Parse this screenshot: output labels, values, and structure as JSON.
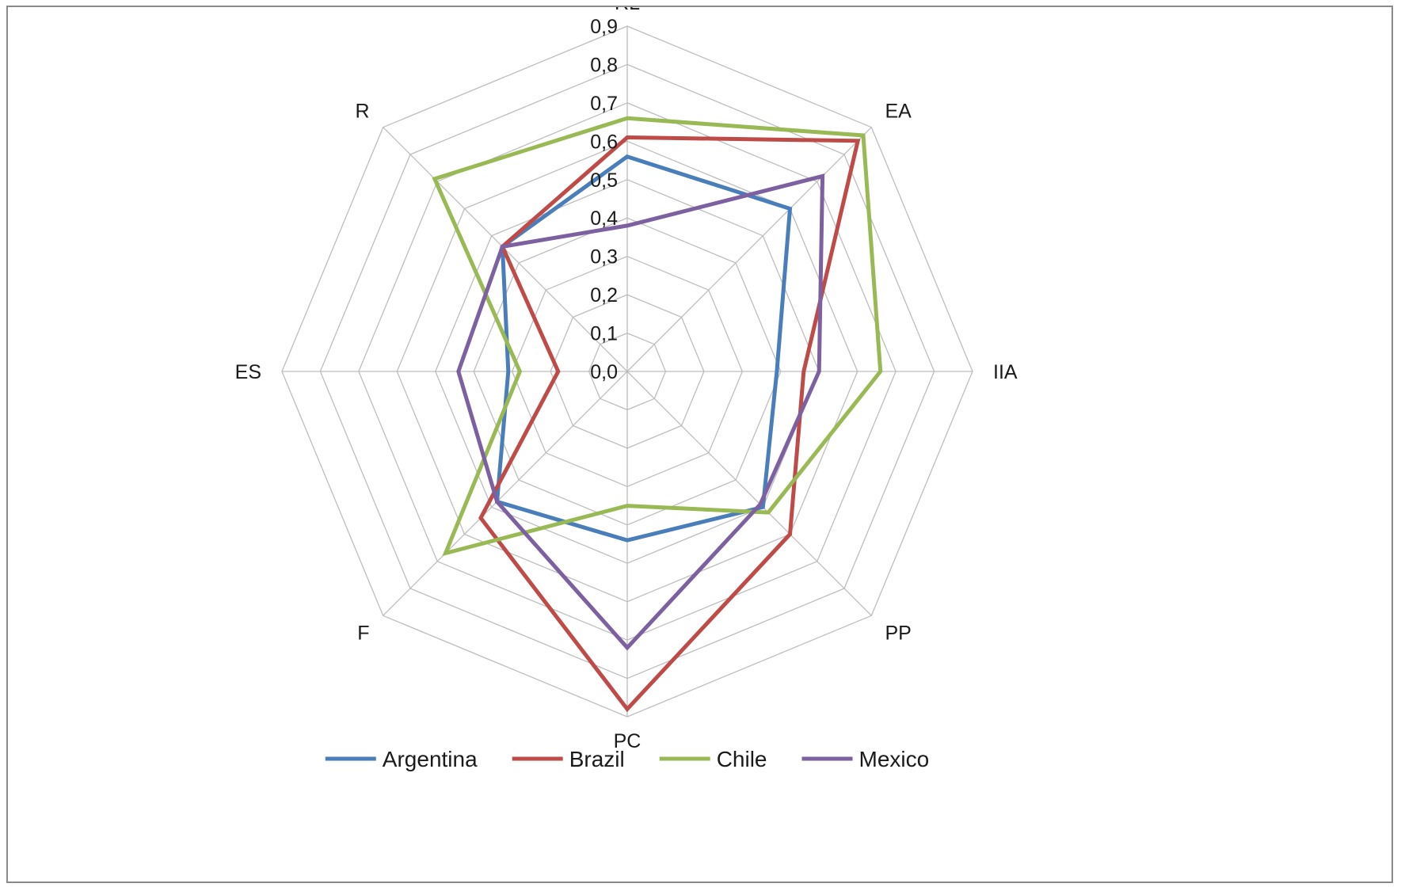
{
  "chart_data": {
    "type": "radar",
    "axes": [
      "RL",
      "EA",
      "IIA",
      "PP",
      "PC",
      "F",
      "ES",
      "R"
    ],
    "rlim": [
      0,
      0.9
    ],
    "ticks": [
      "0,0",
      "0,1",
      "0,2",
      "0,3",
      "0,4",
      "0,5",
      "0,6",
      "0,7",
      "0,8",
      "0,9"
    ],
    "grid": true,
    "legend_position": "bottom",
    "series": [
      {
        "name": "Argentina",
        "color": "#4a7ebb",
        "values": [
          0.56,
          0.6,
          0.39,
          0.5,
          0.44,
          0.48,
          0.31,
          0.46
        ]
      },
      {
        "name": "Brazil",
        "color": "#be4b48",
        "values": [
          0.61,
          0.85,
          0.46,
          0.6,
          0.88,
          0.54,
          0.18,
          0.46
        ]
      },
      {
        "name": "Chile",
        "color": "#98b954",
        "values": [
          0.66,
          0.87,
          0.66,
          0.52,
          0.35,
          0.67,
          0.28,
          0.71
        ]
      },
      {
        "name": "Mexico",
        "color": "#7d60a0",
        "values": [
          0.38,
          0.72,
          0.5,
          0.49,
          0.72,
          0.48,
          0.44,
          0.46
        ]
      }
    ]
  }
}
